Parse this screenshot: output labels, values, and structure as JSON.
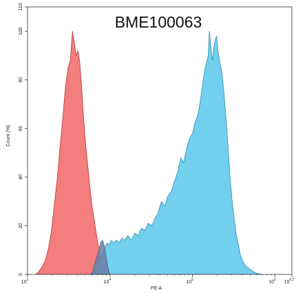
{
  "chart_data": {
    "type": "area",
    "title": "BME100063",
    "xlabel": "PE-A",
    "ylabel": "Count (%)",
    "xscale": "log",
    "xlim": [
      1000,
      1600000
    ],
    "ylim": [
      0,
      110
    ],
    "x_ticks": [
      {
        "value": 1000,
        "base": "10",
        "exp": "3"
      },
      {
        "value": 10000,
        "base": "10",
        "exp": "4"
      },
      {
        "value": 100000,
        "base": "10",
        "exp": "5"
      },
      {
        "value": 1000000,
        "base": "10",
        "exp": "6"
      },
      {
        "value": 1600000,
        "base": "10",
        "exp": "6.2"
      }
    ],
    "y_ticks": [
      "0",
      "20",
      "40",
      "60",
      "80",
      "100",
      "110"
    ],
    "series": [
      {
        "color": "#f26b6b",
        "stroke": "#b23a3a",
        "x": [
          1250,
          1350,
          1500,
          1650,
          1800,
          1950,
          2100,
          2300,
          2500,
          2700,
          2900,
          3100,
          3300,
          3500,
          3700,
          3900,
          4100,
          4300,
          4500,
          4700,
          4900,
          5100,
          5400,
          5700,
          6000,
          6400,
          6800,
          7200,
          7600,
          8000,
          8500,
          9000,
          9500
        ],
        "y": [
          0,
          1,
          3,
          6,
          11,
          18,
          28,
          40,
          54,
          66,
          78,
          85,
          88,
          100,
          95,
          90,
          92,
          87,
          78,
          68,
          60,
          52,
          44,
          36,
          29,
          23,
          17,
          12,
          8,
          5,
          3,
          1,
          0
        ]
      },
      {
        "color": "#5ec8ea",
        "stroke": "#2f8db0",
        "x": [
          5800,
          6300,
          6800,
          7300,
          7800,
          8200,
          8700,
          9200,
          9700,
          10300,
          11000,
          12000,
          13000,
          14000,
          15000,
          16500,
          18000,
          20000,
          22000,
          24000,
          26500,
          29000,
          32000,
          35000,
          38000,
          42000,
          46000,
          50000,
          55000,
          60000,
          66000,
          72000,
          78000,
          85000,
          92000,
          100000,
          108000,
          115000,
          120000,
          125000,
          130000,
          135000,
          140000,
          148000,
          155000,
          160000,
          168000,
          175000,
          180000,
          188000,
          195000,
          205000,
          215000,
          225000,
          240000,
          255000,
          270000,
          285000,
          300000,
          320000,
          340000,
          360000,
          380000,
          400000,
          430000,
          460000,
          500000,
          550000,
          600000,
          650000,
          700000
        ],
        "y": [
          0,
          1,
          3,
          5,
          7,
          9,
          11,
          13,
          12,
          14,
          13,
          14,
          13,
          15,
          14,
          16,
          14,
          17,
          16,
          19,
          18,
          21,
          20,
          23,
          25,
          30,
          28,
          32,
          34,
          38,
          42,
          48,
          46,
          52,
          56,
          58,
          63,
          65,
          68,
          72,
          76,
          80,
          84,
          87,
          90,
          100,
          92,
          88,
          93,
          96,
          98,
          91,
          87,
          84,
          75,
          64,
          52,
          40,
          31,
          23,
          16,
          12,
          8,
          6,
          4,
          3,
          2,
          1,
          0.5,
          0.2,
          0
        ]
      },
      {
        "color": "#6b7fa8",
        "stroke": "#4a5b80",
        "x": [
          6000,
          6600,
          7200,
          7700,
          8100,
          8500,
          8800,
          9100,
          9400,
          9700,
          10100
        ],
        "y": [
          0,
          5,
          9,
          13,
          14,
          12,
          9,
          6,
          3,
          1,
          0
        ]
      }
    ]
  }
}
